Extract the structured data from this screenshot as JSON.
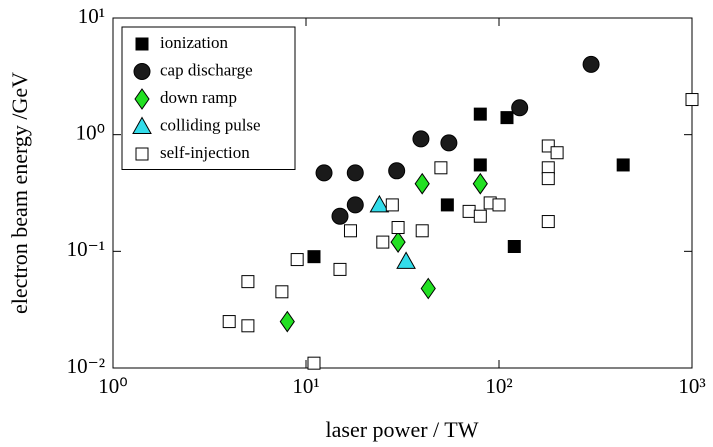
{
  "chart_data": {
    "type": "scatter",
    "xlabel": "laser power / TW",
    "ylabel": "electron beam energy /GeV",
    "xscale": "log",
    "yscale": "log",
    "xlim": [
      1,
      1000
    ],
    "ylim": [
      0.01,
      10
    ],
    "xticks": [
      {
        "value": 1,
        "label": "10⁰"
      },
      {
        "value": 10,
        "label": "10¹"
      },
      {
        "value": 100,
        "label": "10²"
      },
      {
        "value": 1000,
        "label": "10³"
      }
    ],
    "yticks": [
      {
        "value": 0.01,
        "label": "10⁻²"
      },
      {
        "value": 0.1,
        "label": "10⁻¹"
      },
      {
        "value": 1,
        "label": "10⁰"
      },
      {
        "value": 10,
        "label": "10¹"
      }
    ],
    "legend": "upper left",
    "series": [
      {
        "name": "ionization",
        "marker": "square",
        "color": "#000000",
        "edgecolor": "#000000",
        "x": [
          11,
          54,
          80,
          110,
          80,
          120,
          440
        ],
        "values": [
          0.09,
          0.25,
          1.5,
          1.4,
          0.55,
          0.11,
          0.55
        ]
      },
      {
        "name": "cap discharge",
        "marker": "circle",
        "color": "#1a1a1a",
        "edgecolor": "#000000",
        "x": [
          12.4,
          18,
          29.5,
          39.4,
          55,
          128,
          300,
          15,
          18
        ],
        "values": [
          0.47,
          0.47,
          0.49,
          0.92,
          0.85,
          1.7,
          4.0,
          0.2,
          0.25
        ]
      },
      {
        "name": "down ramp",
        "marker": "diamond",
        "color": "#22e022",
        "edgecolor": "#000000",
        "x": [
          8,
          40,
          30,
          43,
          80
        ],
        "values": [
          0.025,
          0.38,
          0.12,
          0.048,
          0.38
        ]
      },
      {
        "name": "colliding pulse",
        "marker": "triangle",
        "color": "#33dcea",
        "edgecolor": "#000000",
        "x": [
          24,
          33
        ],
        "values": [
          0.25,
          0.082
        ]
      },
      {
        "name": "self-injection",
        "marker": "square",
        "color": "#ffffff",
        "edgecolor": "#000000",
        "x": [
          4,
          5,
          5,
          7.5,
          9,
          11,
          15,
          17,
          25,
          28,
          30,
          40,
          50,
          70,
          80,
          90,
          100,
          180,
          180,
          180,
          200,
          180,
          1000
        ],
        "values": [
          0.025,
          0.023,
          0.055,
          0.045,
          0.085,
          0.011,
          0.07,
          0.15,
          0.12,
          0.25,
          0.16,
          0.15,
          0.52,
          0.22,
          0.2,
          0.26,
          0.25,
          0.8,
          0.52,
          0.42,
          0.7,
          0.18,
          2.0
        ]
      }
    ]
  }
}
